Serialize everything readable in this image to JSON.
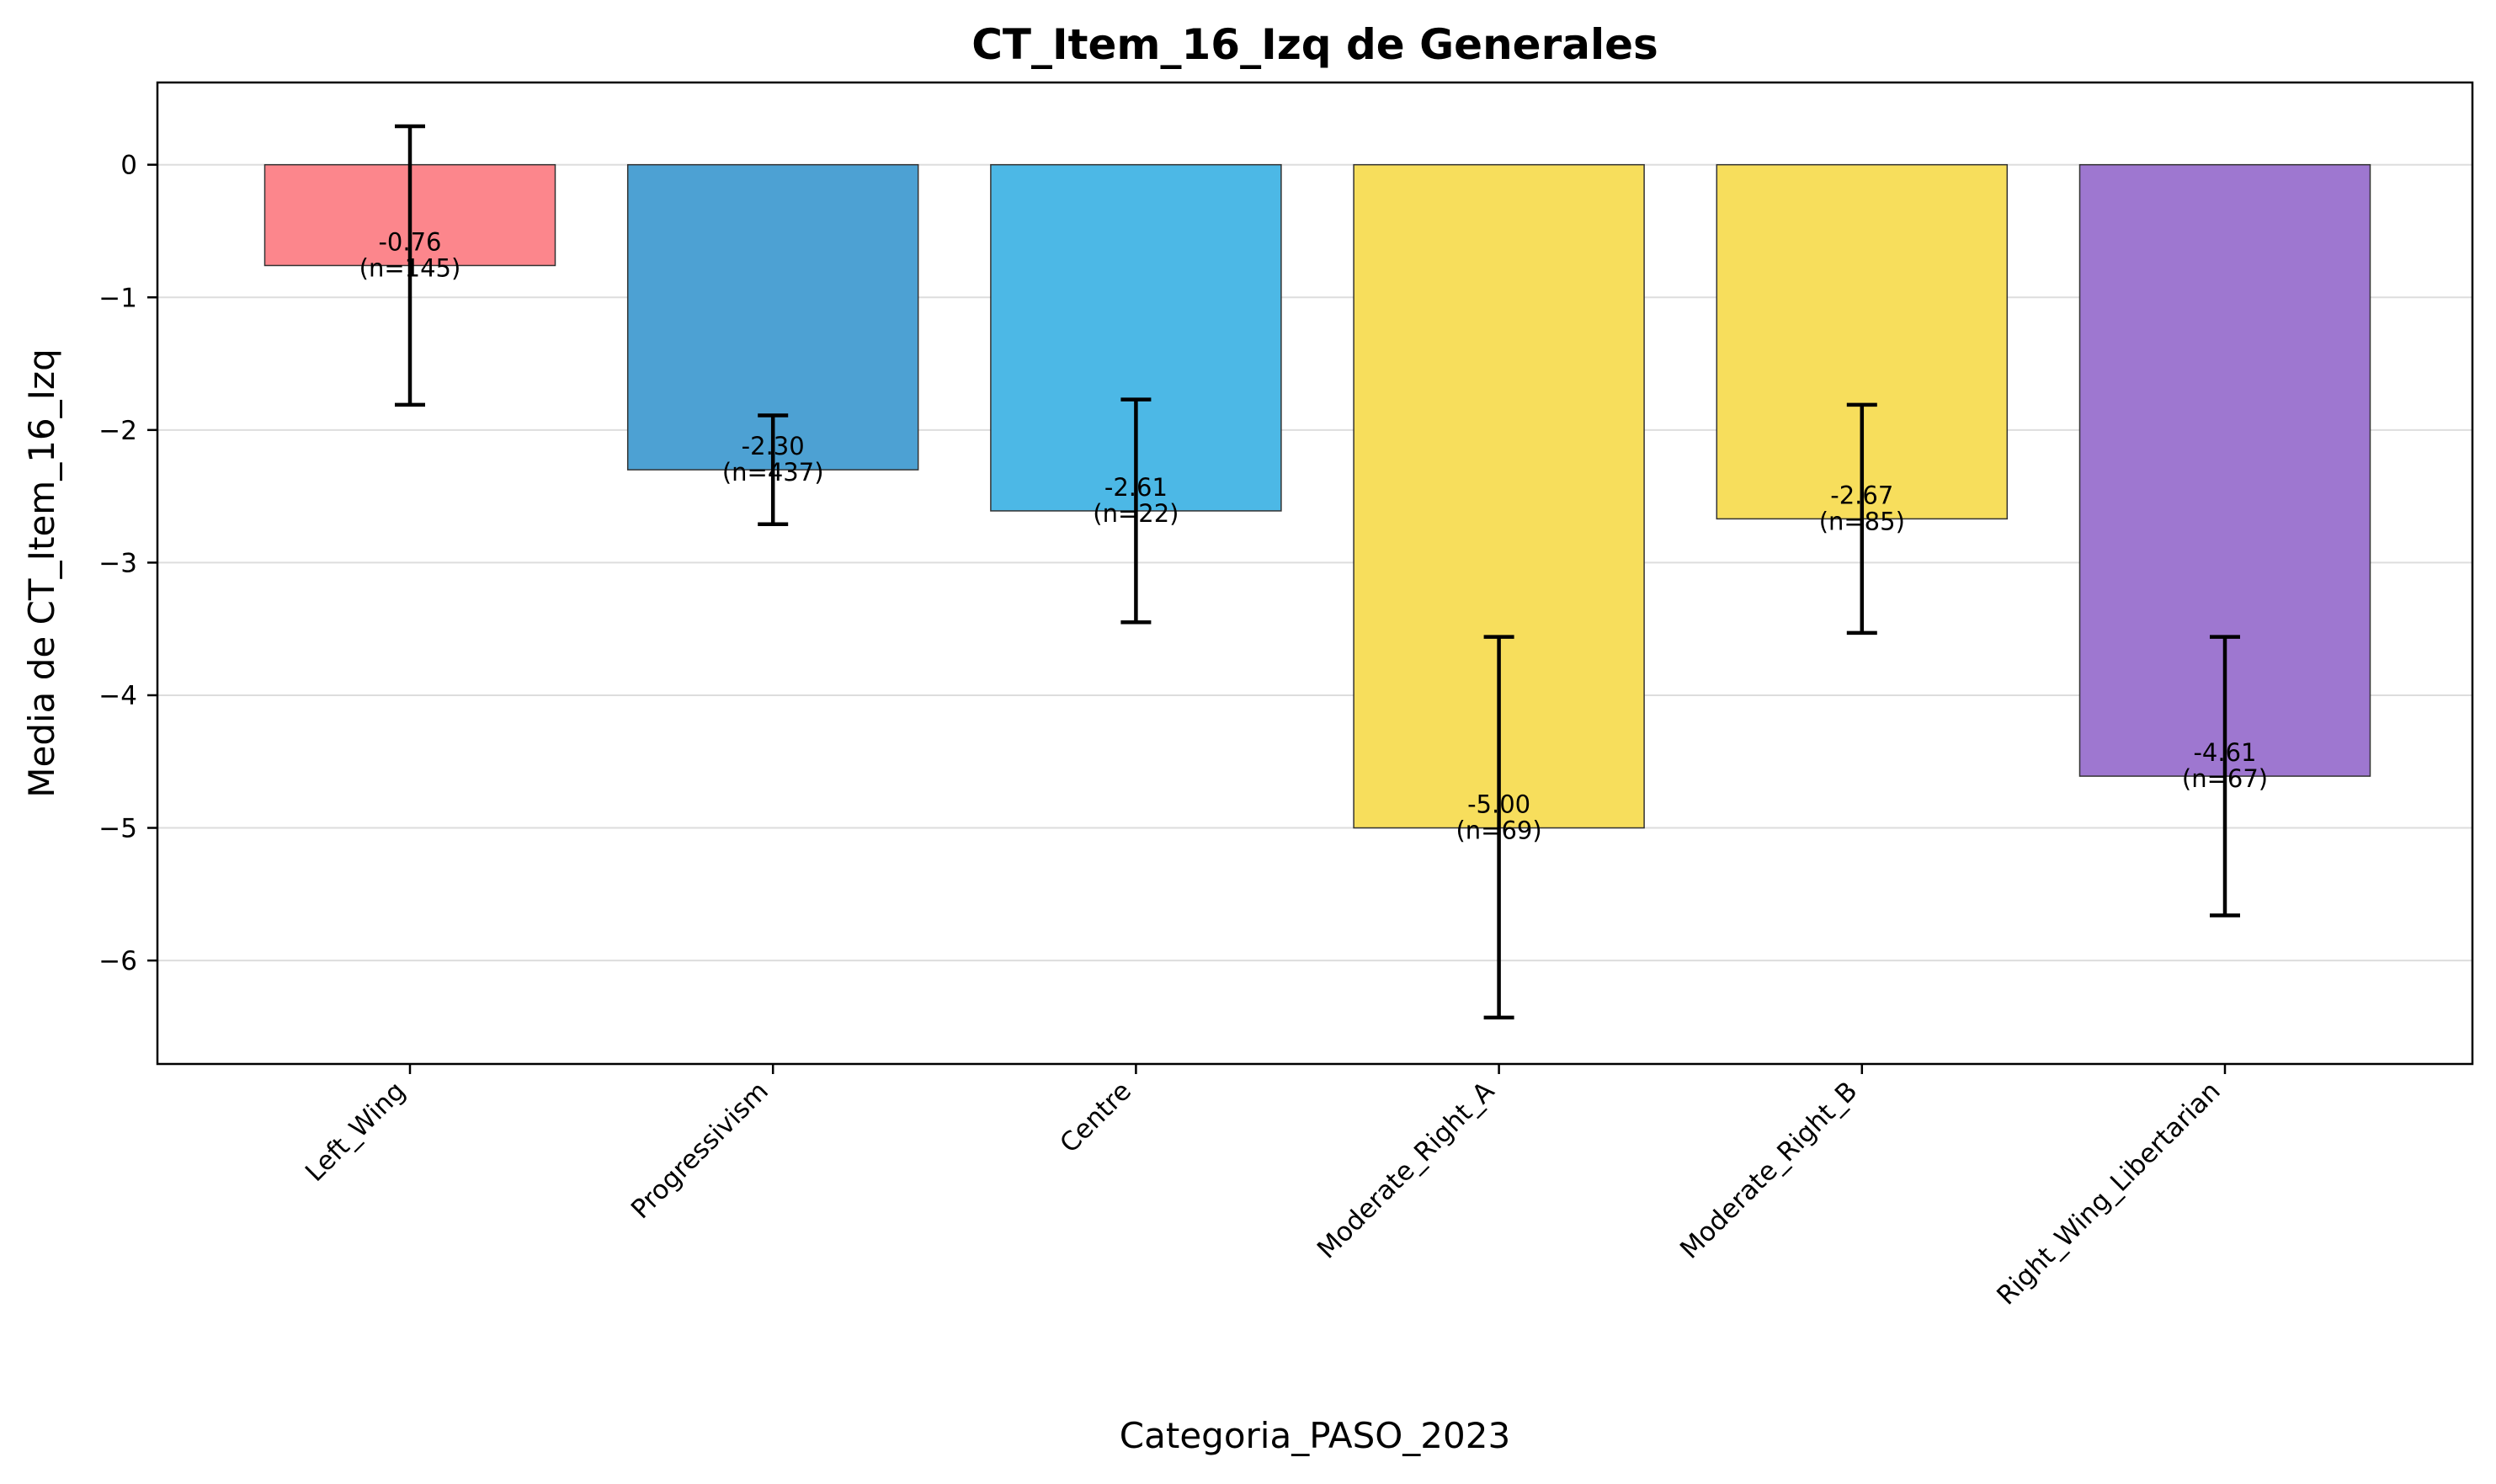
{
  "chart_data": {
    "type": "bar",
    "title": "CT_Item_16_Izq de Generales",
    "xlabel": "Categoria_PASO_2023",
    "ylabel": "Media de CT_Item_16_Izq",
    "ylim": [
      -6.78,
      0.62
    ],
    "yticks": [
      0,
      -1,
      -2,
      -3,
      -4,
      -5,
      -6
    ],
    "grid": "y",
    "categories": [
      "Left_Wing",
      "Progressivism",
      "Centre",
      "Moderate_Right_A",
      "Moderate_Right_B",
      "Right_Wing_Libertarian"
    ],
    "values": [
      -0.76,
      -2.3,
      -2.61,
      -5.0,
      -2.67,
      -4.61
    ],
    "error_low": [
      -1.81,
      -2.71,
      -3.45,
      -6.43,
      -3.53,
      -5.66
    ],
    "error_high": [
      0.29,
      -1.89,
      -1.77,
      -3.56,
      -1.81,
      -3.56
    ],
    "n": [
      145,
      437,
      22,
      69,
      85,
      67
    ],
    "data_labels": [
      [
        "-0.76",
        "(n=145)"
      ],
      [
        "-2.30",
        "(n=437)"
      ],
      [
        "-2.61",
        "(n=22)"
      ],
      [
        "-5.00",
        "(n=69)"
      ],
      [
        "-2.67",
        "(n=85)"
      ],
      [
        "-4.61",
        "(n=67)"
      ]
    ],
    "colors": [
      "#fc868c",
      "#4da1d3",
      "#4cb8e6",
      "#f7de5c",
      "#f7de5c",
      "#9e77d0"
    ]
  }
}
